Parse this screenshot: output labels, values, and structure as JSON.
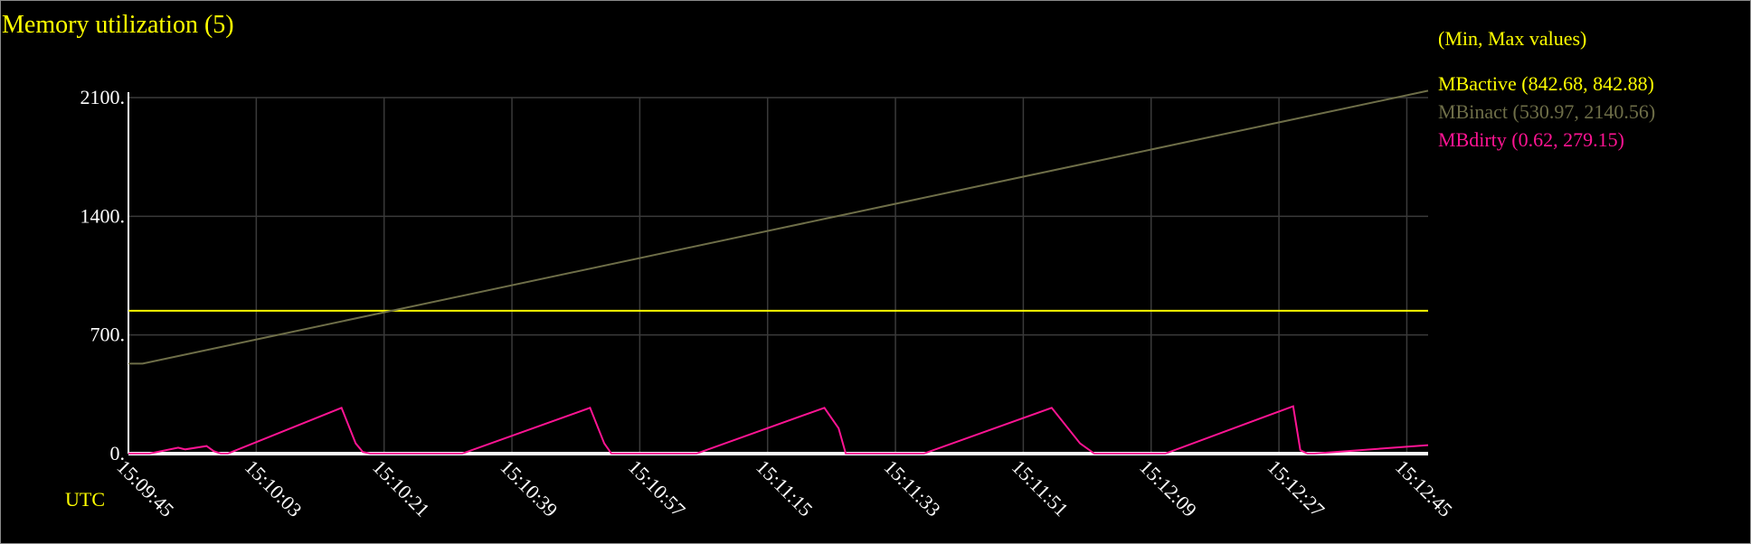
{
  "chart_data": {
    "type": "line",
    "title": "Memory utilization (5)",
    "legend_header": "(Min, Max values)",
    "legend_position": "top-right",
    "x_unit_label": "UTC",
    "x_tick_labels": [
      "15:09:45",
      "15:10:03",
      "15:10:21",
      "15:10:39",
      "15:10:57",
      "15:11:15",
      "15:11:33",
      "15:11:51",
      "15:12:09",
      "15:12:27",
      "15:12:45"
    ],
    "y_tick_labels": [
      "0.",
      "700.",
      "1400.",
      "2100."
    ],
    "y_ticks": [
      0,
      700,
      1400,
      2100
    ],
    "ylim": [
      0,
      2100
    ],
    "x_range_seconds": [
      0,
      183
    ],
    "grid": true,
    "series": [
      {
        "name": "MBactive",
        "legend_label": "MBactive (842.68, 842.88)",
        "color": "#ffff00",
        "x": [
          0,
          183
        ],
        "values": [
          842.68,
          842.88
        ]
      },
      {
        "name": "MBinact",
        "legend_label": "MBinact (530.97, 2140.56)",
        "color": "#6e6e48",
        "x": [
          0,
          2,
          183
        ],
        "values": [
          530.97,
          530.97,
          2140.56
        ]
      },
      {
        "name": "MBdirty",
        "legend_label": "MBdirty (0.62, 279.15)",
        "color": "#ff1493",
        "x": [
          0,
          3,
          7,
          8,
          11,
          12,
          13,
          14,
          30,
          32,
          33,
          34,
          47,
          65,
          67,
          68,
          80,
          98,
          100,
          101,
          112,
          130,
          134,
          136,
          146,
          164,
          165,
          166,
          167,
          183
        ],
        "values": [
          0.62,
          0.62,
          35,
          25,
          45,
          15,
          0.62,
          0.62,
          270,
          60,
          10,
          0.62,
          0.62,
          270,
          60,
          0.62,
          0.62,
          270,
          150,
          0.62,
          0.62,
          270,
          60,
          0.62,
          0.62,
          279.15,
          20,
          0.62,
          0.62,
          50
        ]
      }
    ]
  }
}
